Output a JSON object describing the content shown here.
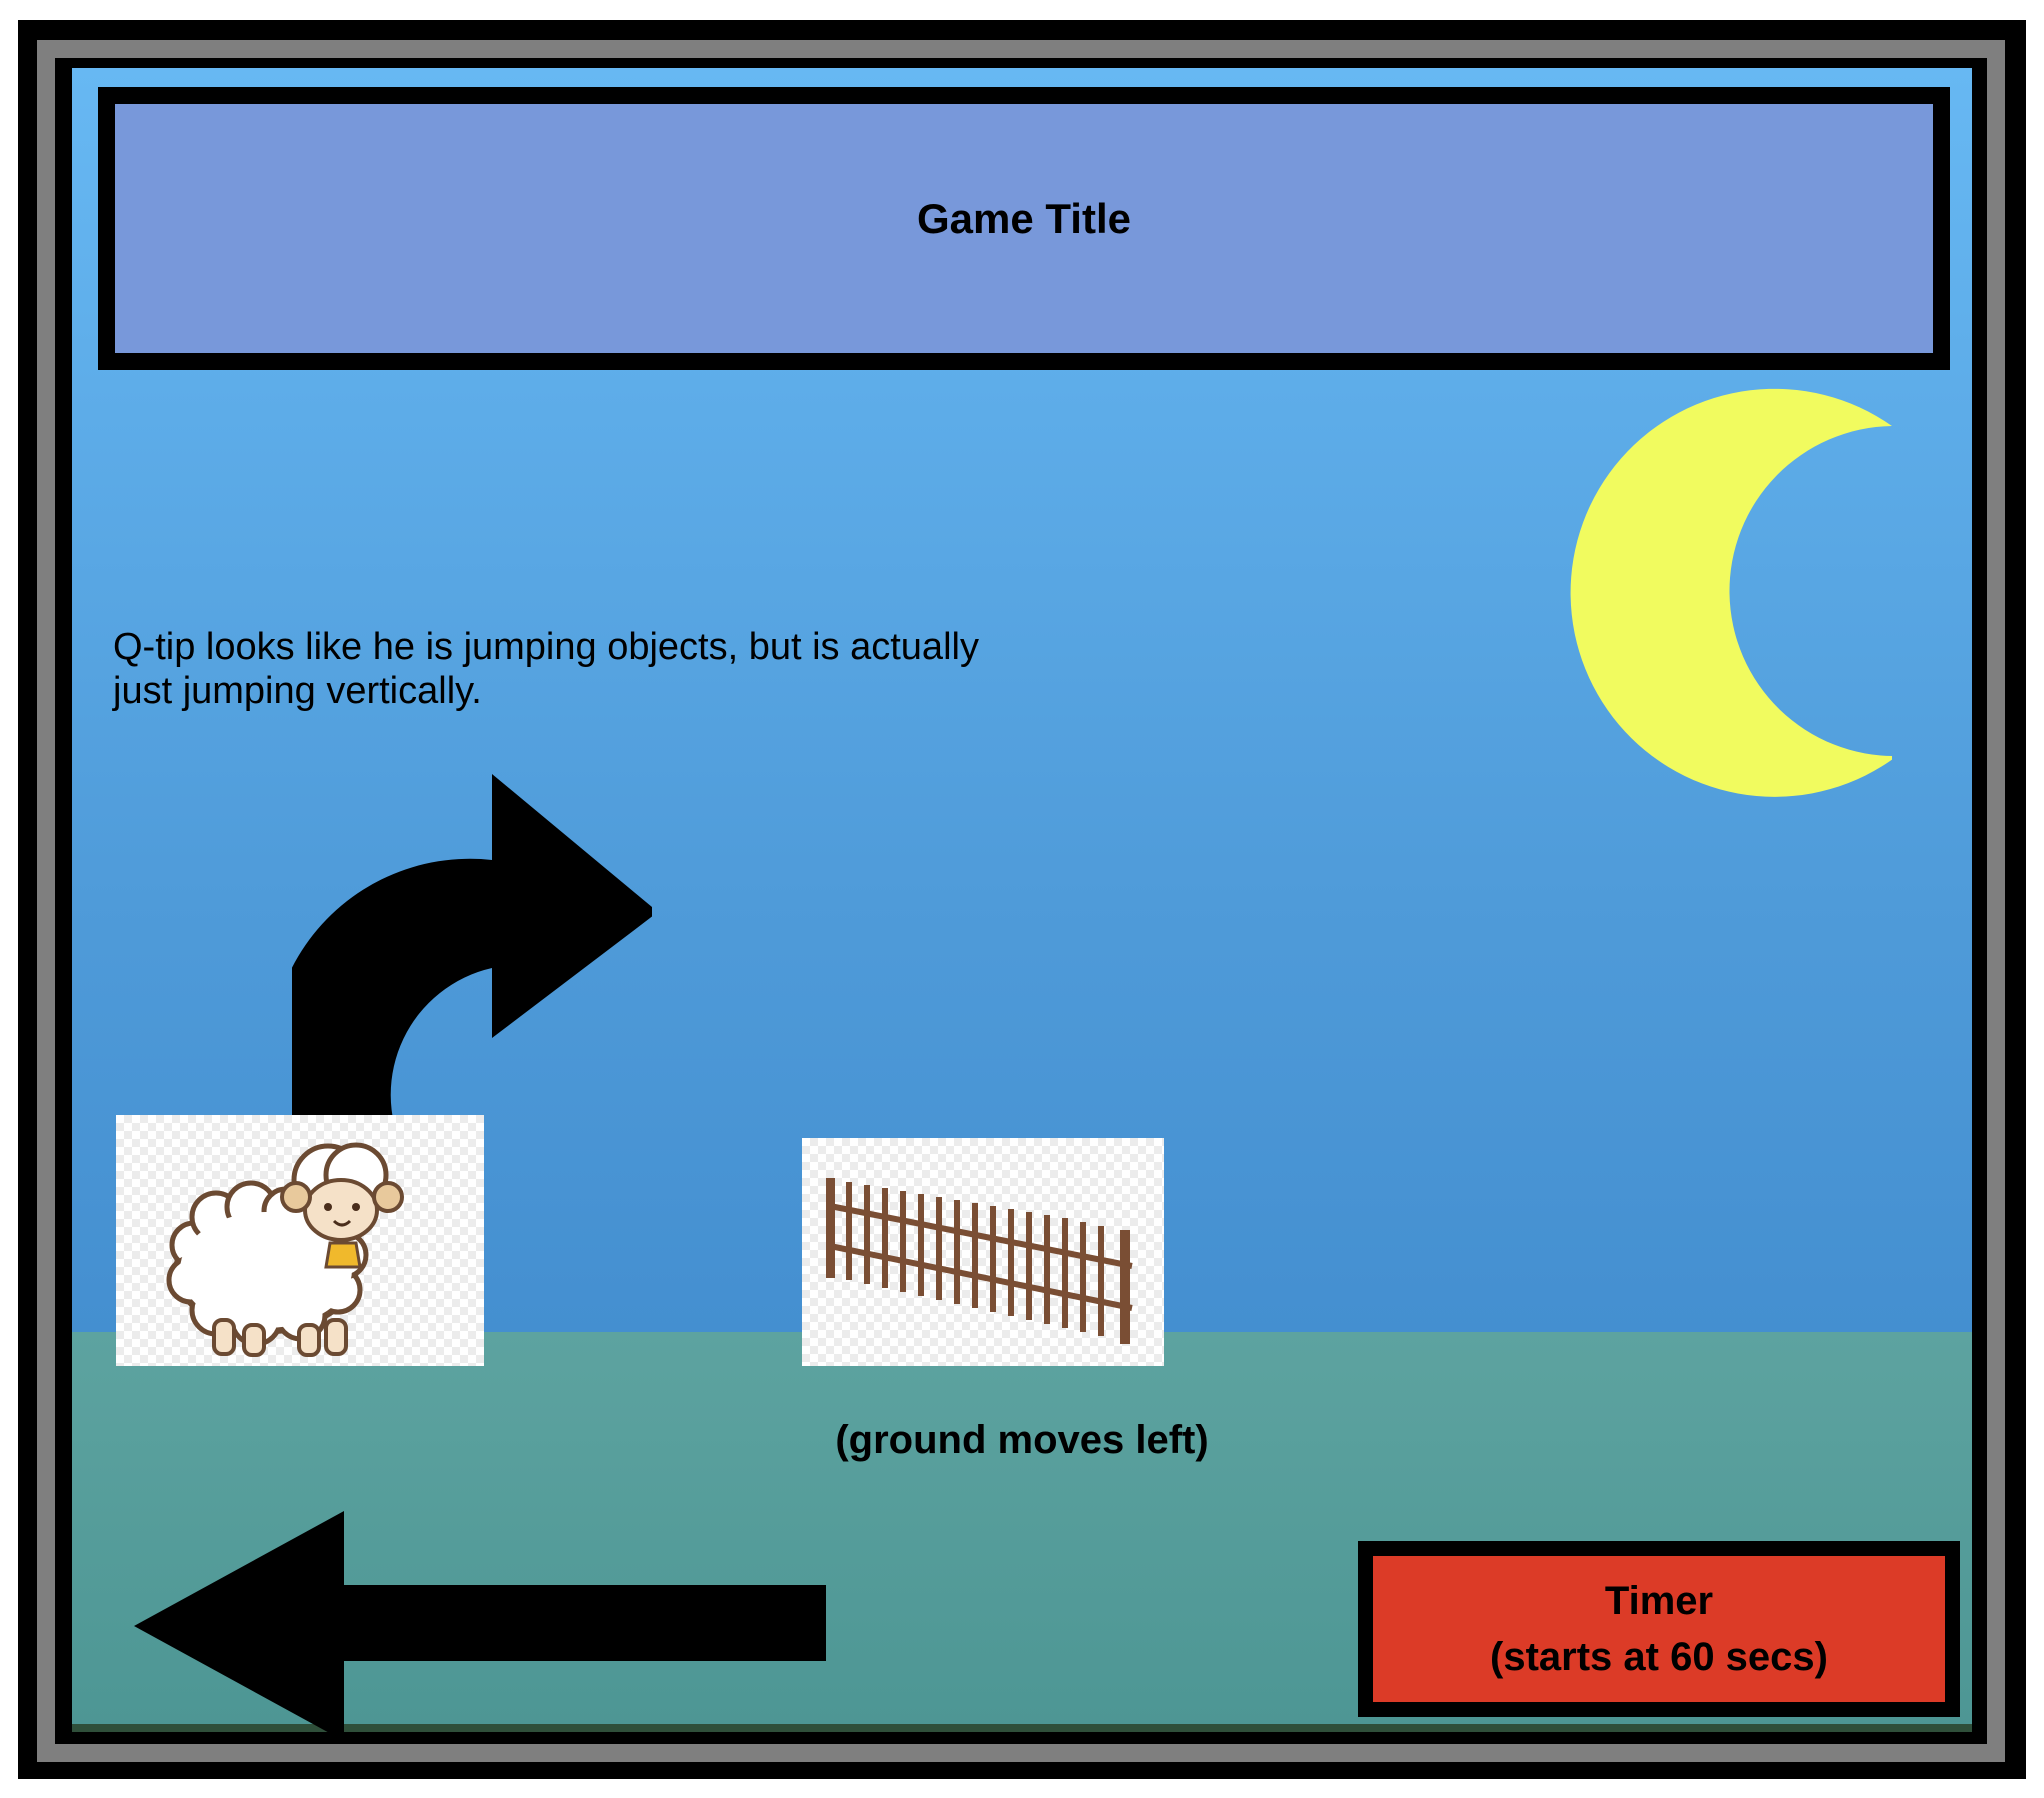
{
  "title": "Game Title",
  "note": "Q-tip looks like he is jumping objects, but is actually just jumping vertically.",
  "ground_label": "(ground moves left)",
  "timer": {
    "label": "Timer",
    "detail": "(starts at 60 secs)"
  },
  "colors": {
    "sky_top": "#67b8f3",
    "sky_bottom": "#3a84c8",
    "ground": "#5da3a0",
    "title_bar": "#7898da",
    "moon": "#f1fb5f",
    "timer": "#dc3b27"
  },
  "icons": [
    "moon-icon",
    "curved-jump-arrow-icon",
    "left-arrow-icon",
    "sheep-sprite",
    "fence-sprite"
  ]
}
